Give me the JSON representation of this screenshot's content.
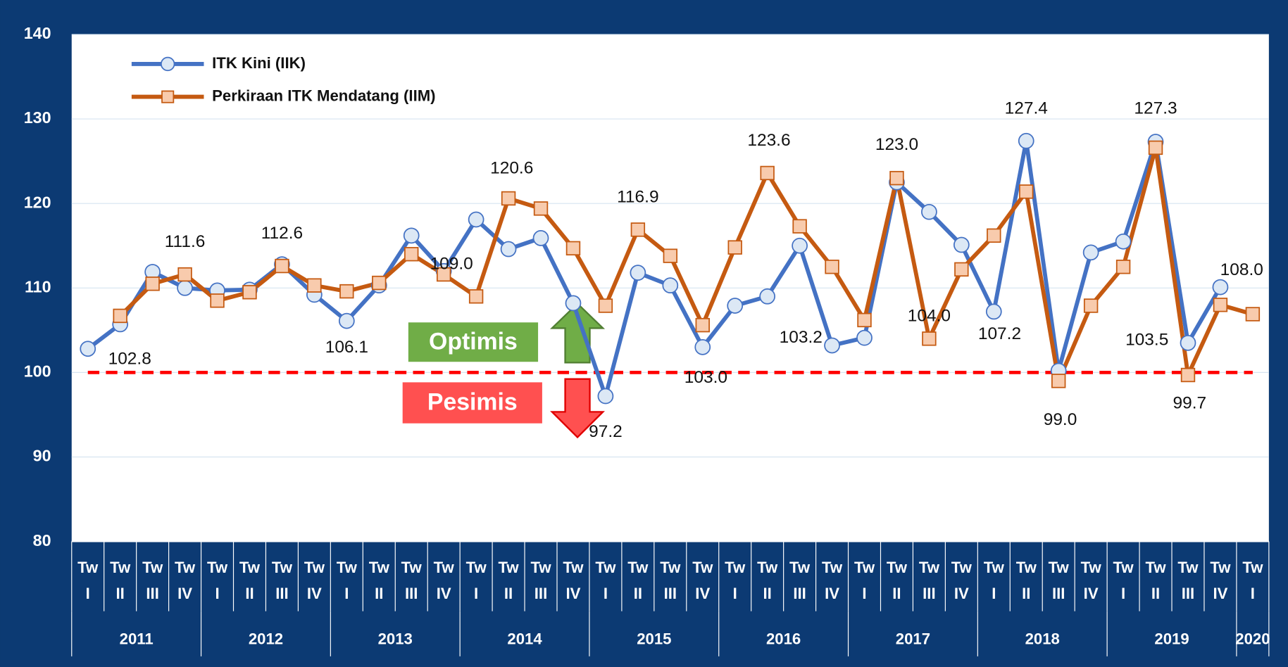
{
  "chart_data": {
    "type": "line",
    "categories": [
      [
        "Tw",
        "I"
      ],
      [
        "Tw",
        "II"
      ],
      [
        "Tw",
        "III"
      ],
      [
        "Tw",
        "IV"
      ],
      [
        "Tw",
        "I"
      ],
      [
        "Tw",
        "II"
      ],
      [
        "Tw",
        "III"
      ],
      [
        "Tw",
        "IV"
      ],
      [
        "Tw",
        "I"
      ],
      [
        "Tw",
        "II"
      ],
      [
        "Tw",
        "III"
      ],
      [
        "Tw",
        "IV"
      ],
      [
        "Tw",
        "I"
      ],
      [
        "Tw",
        "II"
      ],
      [
        "Tw",
        "III"
      ],
      [
        "Tw",
        "IV"
      ],
      [
        "Tw",
        "I"
      ],
      [
        "Tw",
        "II"
      ],
      [
        "Tw",
        "III"
      ],
      [
        "Tw",
        "IV"
      ],
      [
        "Tw",
        "I"
      ],
      [
        "Tw",
        "II"
      ],
      [
        "Tw",
        "III"
      ],
      [
        "Tw",
        "IV"
      ],
      [
        "Tw",
        "I"
      ],
      [
        "Tw",
        "II"
      ],
      [
        "Tw",
        "III"
      ],
      [
        "Tw",
        "IV"
      ],
      [
        "Tw",
        "I"
      ],
      [
        "Tw",
        "II"
      ],
      [
        "Tw",
        "III"
      ],
      [
        "Tw",
        "IV"
      ],
      [
        "Tw",
        "I"
      ],
      [
        "Tw",
        "II"
      ],
      [
        "Tw",
        "III"
      ],
      [
        "Tw",
        "IV"
      ],
      [
        "Tw",
        "I"
      ]
    ],
    "groups": [
      {
        "label": "2011",
        "span": 4
      },
      {
        "label": "2012",
        "span": 4
      },
      {
        "label": "2013",
        "span": 4
      },
      {
        "label": "2014",
        "span": 4
      },
      {
        "label": "2015",
        "span": 4
      },
      {
        "label": "2016",
        "span": 4
      },
      {
        "label": "2017",
        "span": 4
      },
      {
        "label": "2018",
        "span": 4
      },
      {
        "label": "2019",
        "span": 4
      },
      {
        "label": "2020",
        "span": 1
      }
    ],
    "series": [
      {
        "name": "ITK Kini (IIK)",
        "color": "#4472c4",
        "marker_fill": "#dce8f5",
        "marker": "circle",
        "values": [
          102.8,
          105.7,
          111.9,
          110.0,
          109.7,
          109.8,
          112.8,
          109.2,
          106.1,
          110.3,
          116.2,
          112.0,
          118.1,
          114.6,
          115.9,
          108.2,
          97.2,
          111.8,
          110.3,
          103.0,
          107.9,
          109.0,
          115.0,
          103.2,
          104.1,
          122.5,
          119.0,
          115.1,
          107.2,
          127.4,
          100.2,
          114.2,
          115.5,
          127.3,
          103.5,
          110.1,
          null
        ],
        "value_labels": [
          "102.8",
          null,
          null,
          null,
          null,
          null,
          null,
          null,
          "106.1",
          null,
          null,
          null,
          null,
          null,
          null,
          null,
          "97.2",
          null,
          null,
          "103.0",
          null,
          null,
          null,
          "103.2",
          null,
          null,
          null,
          null,
          "107.2",
          "127.4",
          null,
          null,
          null,
          "127.3",
          "103.5",
          null,
          null
        ]
      },
      {
        "name": "Perkiraan ITK Mendatang (IIM)",
        "color": "#c55a11",
        "marker_fill": "#f8cbad",
        "marker": "square",
        "values": [
          null,
          106.7,
          110.5,
          111.6,
          108.5,
          109.5,
          112.6,
          110.3,
          109.6,
          110.6,
          114.0,
          111.6,
          109.0,
          120.6,
          119.4,
          114.7,
          107.9,
          116.9,
          113.8,
          105.6,
          114.8,
          123.6,
          117.3,
          112.5,
          106.2,
          123.0,
          104.0,
          112.2,
          116.2,
          121.4,
          99.0,
          107.9,
          112.5,
          126.6,
          99.7,
          108.0,
          106.9
        ],
        "value_labels": [
          null,
          null,
          null,
          "111.6",
          null,
          null,
          "112.6",
          null,
          null,
          null,
          null,
          null,
          "109.0",
          "120.6",
          null,
          null,
          null,
          "116.9",
          null,
          null,
          null,
          "123.6",
          null,
          null,
          null,
          "123.0",
          "104.0",
          null,
          null,
          null,
          "99.0",
          null,
          null,
          null,
          "99.7",
          "108.0",
          null
        ]
      }
    ],
    "reference_line": {
      "value": 100,
      "color": "#ff0000"
    },
    "annotations": {
      "above": "Optimis",
      "below": "Pesimis"
    },
    "ylim": [
      80,
      140
    ],
    "yticks": [
      80,
      90,
      100,
      110,
      120,
      130,
      140
    ],
    "grid": true,
    "legend": "top-left"
  }
}
